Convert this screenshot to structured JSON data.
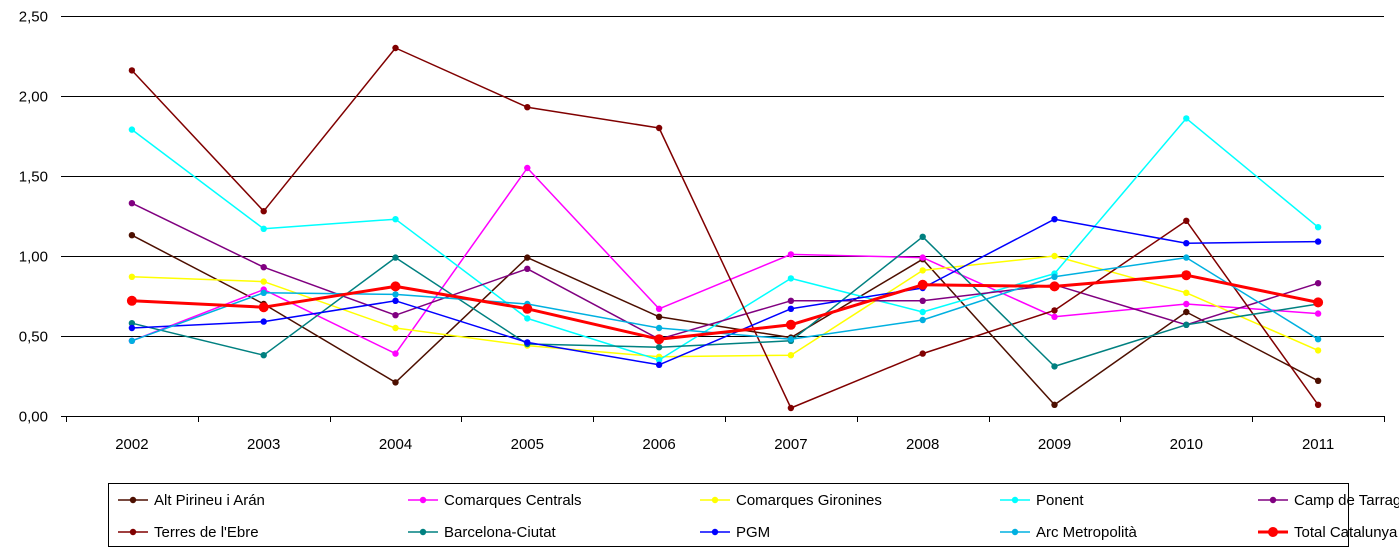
{
  "chart_data": {
    "type": "line",
    "title": "",
    "xlabel": "",
    "ylabel": "",
    "categories": [
      "2002",
      "2003",
      "2004",
      "2005",
      "2006",
      "2007",
      "2008",
      "2009",
      "2010",
      "2011"
    ],
    "ylim": [
      0,
      2.5
    ],
    "yticks": [
      0,
      0.5,
      1.0,
      1.5,
      2.0,
      2.5
    ],
    "ytick_labels": [
      "0,00",
      "0,50",
      "1,00",
      "1,50",
      "2,00",
      "2,50"
    ],
    "grid": "horizontal",
    "legend_position": "bottom",
    "series": [
      {
        "name": "Alt Pirineu i Arán",
        "color": "#4d0f00",
        "values": [
          1.13,
          0.7,
          0.21,
          0.99,
          0.62,
          0.49,
          0.98,
          0.07,
          0.65,
          0.22
        ]
      },
      {
        "name": "Comarques Centrals",
        "color": "#ff00ff",
        "values": [
          0.47,
          0.79,
          0.39,
          1.55,
          0.67,
          1.01,
          0.99,
          0.62,
          0.7,
          0.64
        ]
      },
      {
        "name": "Comarques Gironines",
        "color": "#ffff00",
        "values": [
          0.87,
          0.84,
          0.55,
          0.44,
          0.37,
          0.38,
          0.91,
          1.0,
          0.77,
          0.41
        ]
      },
      {
        "name": "Ponent",
        "color": "#00ffff",
        "values": [
          1.79,
          1.17,
          1.23,
          0.61,
          0.35,
          0.86,
          0.65,
          0.89,
          1.86,
          1.18
        ]
      },
      {
        "name": "Camp de Tarragona",
        "color": "#800080",
        "values": [
          1.33,
          0.93,
          0.63,
          0.92,
          0.48,
          0.72,
          0.72,
          0.82,
          0.57,
          0.83
        ]
      },
      {
        "name": "Terres de l'Ebre",
        "color": "#800000",
        "values": [
          2.16,
          1.28,
          2.3,
          1.93,
          1.8,
          0.05,
          0.39,
          0.66,
          1.22,
          0.07
        ]
      },
      {
        "name": "Barcelona-Ciutat",
        "color": "#008080",
        "values": [
          0.58,
          0.38,
          0.99,
          0.45,
          0.43,
          0.47,
          1.12,
          0.31,
          0.57,
          0.7
        ]
      },
      {
        "name": "PGM",
        "color": "#0000ff",
        "values": [
          0.55,
          0.59,
          0.72,
          0.46,
          0.32,
          0.67,
          0.8,
          1.23,
          1.08,
          1.09
        ]
      },
      {
        "name": "Arc Metropolità",
        "color": "#00b0e0",
        "values": [
          0.47,
          0.77,
          0.76,
          0.7,
          0.55,
          0.48,
          0.6,
          0.87,
          0.99,
          0.48
        ]
      },
      {
        "name": "Total Catalunya",
        "color": "#ff0000",
        "values": [
          0.72,
          0.68,
          0.81,
          0.67,
          0.48,
          0.57,
          0.82,
          0.81,
          0.88,
          0.71
        ]
      }
    ]
  }
}
